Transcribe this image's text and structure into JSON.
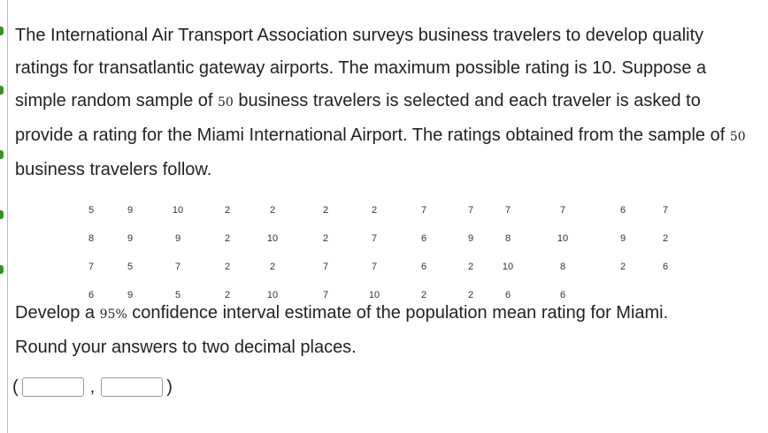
{
  "question": {
    "intro_part1": "The International Air Transport Association surveys business travelers to develop quality ratings for transatlantic gateway airports. The maximum possible rating is 10. Suppose a simple random sample of ",
    "sample_size": "50",
    "intro_part2": " business travelers is selected and each traveler is asked to provide a rating for the Miami International Airport. The ratings obtained from the sample of ",
    "intro_part3": " business travelers follow.",
    "task_part1": "Develop a ",
    "confidence": "95%",
    "task_part2": " confidence interval estimate of the population mean rating for Miami.",
    "task_line2": "Round your answers to two decimal places."
  },
  "ratings": [
    [
      "5",
      "9",
      "10",
      "2",
      "2",
      "2",
      "2",
      "7",
      "7",
      "7",
      "7",
      "6",
      "7"
    ],
    [
      "8",
      "9",
      "9",
      "2",
      "10",
      "2",
      "7",
      "6",
      "9",
      "8",
      "10",
      "9",
      "2"
    ],
    [
      "7",
      "5",
      "7",
      "2",
      "2",
      "7",
      "7",
      "6",
      "2",
      "10",
      "8",
      "2",
      "6"
    ],
    [
      "6",
      "9",
      "5",
      "2",
      "10",
      "7",
      "10",
      "2",
      "2",
      "6",
      "6",
      "",
      ""
    ]
  ],
  "answer": {
    "open_paren": "(",
    "comma": ",",
    "close_paren": ")",
    "lower_value": "",
    "upper_value": ""
  },
  "colors": {
    "marker": "#3a8f2a",
    "text": "#222222"
  }
}
